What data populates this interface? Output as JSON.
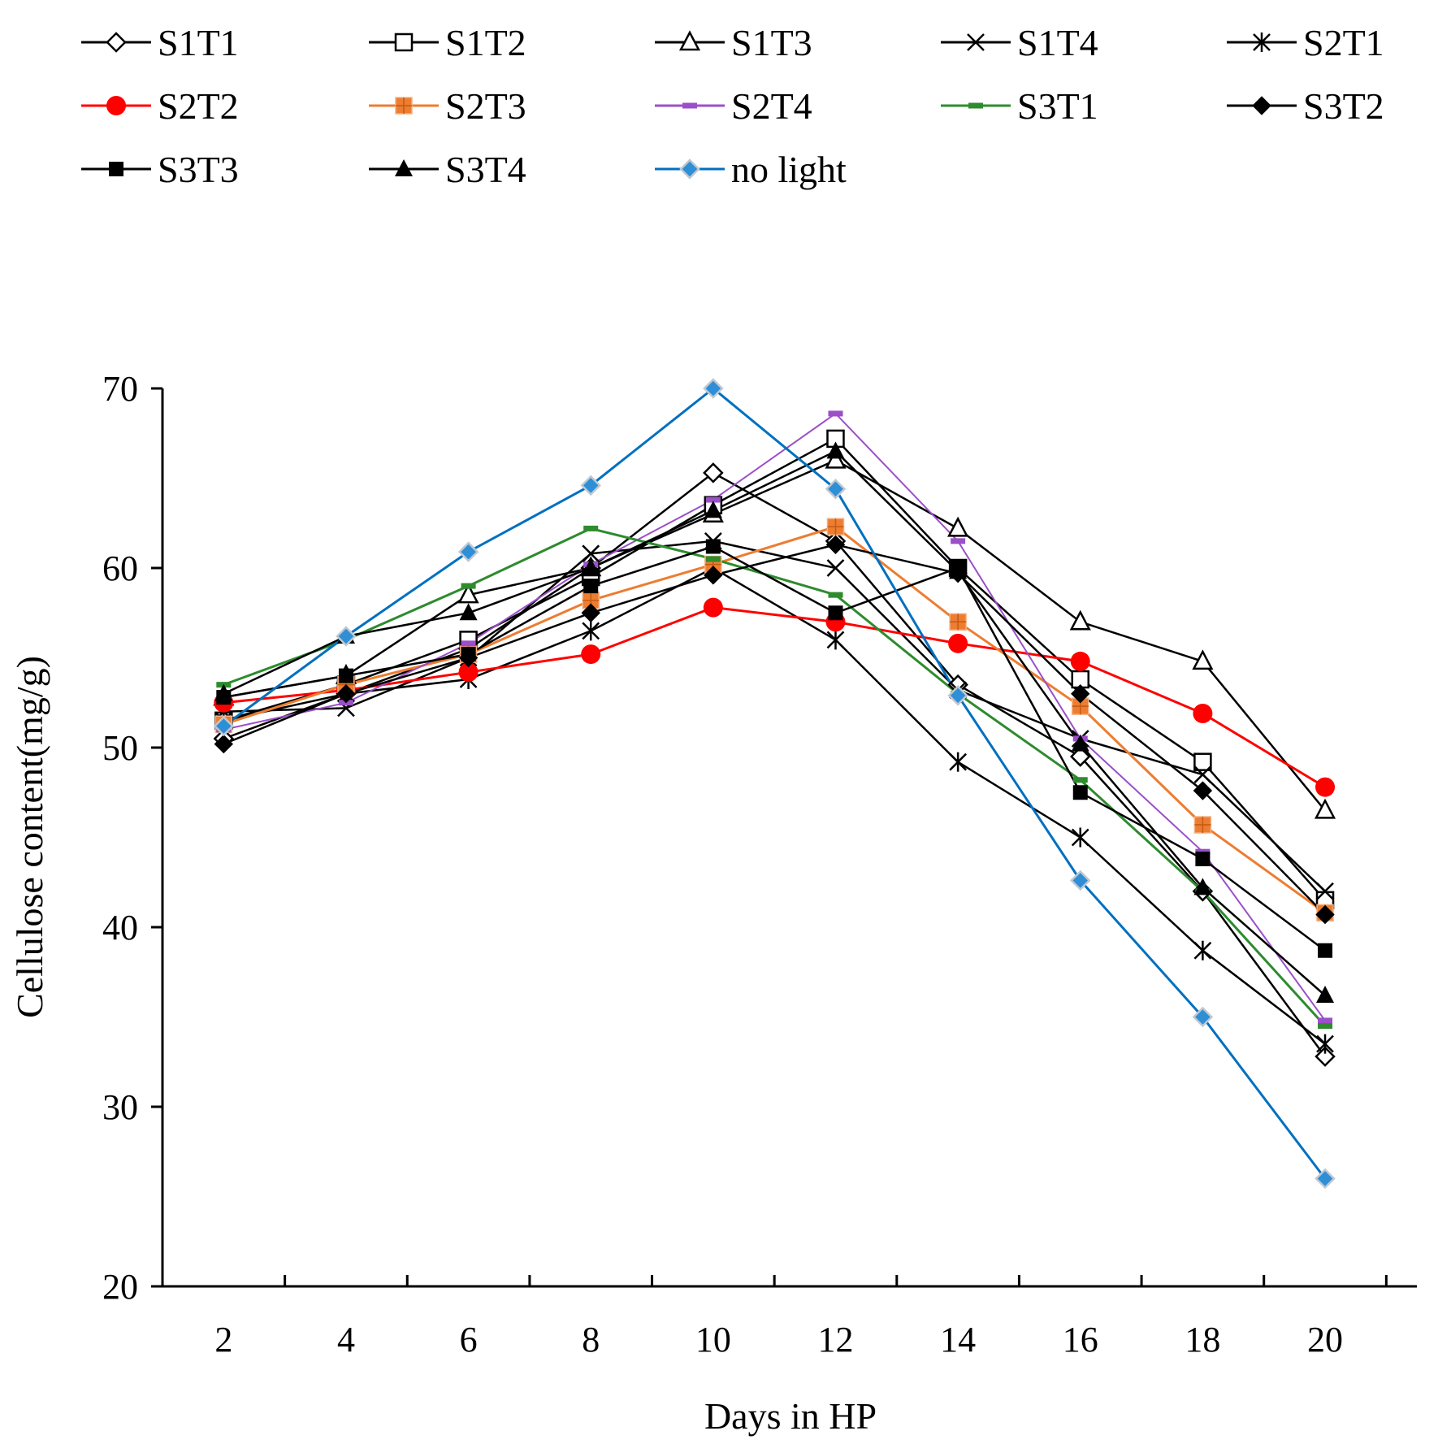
{
  "chart_data": {
    "type": "line",
    "xlabel": "Days in HP",
    "ylabel": "Cellulose content(mg/g)",
    "ylim": [
      20,
      70
    ],
    "yticks": [
      20,
      30,
      40,
      50,
      60,
      70
    ],
    "x": [
      2,
      4,
      6,
      8,
      10,
      12,
      14,
      16,
      18,
      20
    ],
    "grid": false,
    "legend_position": "top",
    "series": [
      {
        "name": "S1T1",
        "color": "#000000",
        "marker": "diamond-open",
        "values": [
          50.5,
          53.0,
          55.5,
          60.0,
          65.3,
          61.5,
          53.5,
          49.5,
          42.0,
          32.8
        ]
      },
      {
        "name": "S1T2",
        "color": "#000000",
        "marker": "square-open",
        "values": [
          51.5,
          53.5,
          56.0,
          59.5,
          63.5,
          67.2,
          60.0,
          53.8,
          49.2,
          41.5
        ]
      },
      {
        "name": "S1T3",
        "color": "#000000",
        "marker": "triangle-open",
        "values": [
          52.8,
          54.0,
          58.5,
          60.0,
          63.0,
          66.0,
          62.2,
          57.0,
          54.8,
          46.5
        ]
      },
      {
        "name": "S1T4",
        "color": "#000000",
        "marker": "x",
        "values": [
          52.0,
          52.2,
          55.0,
          60.8,
          61.5,
          60.0,
          53.2,
          50.5,
          48.5,
          42.0
        ]
      },
      {
        "name": "S2T1",
        "color": "#000000",
        "marker": "star",
        "values": [
          51.5,
          53.0,
          53.8,
          56.5,
          60.0,
          56.0,
          49.2,
          45.0,
          38.7,
          33.5
        ]
      },
      {
        "name": "S2T2",
        "color": "#ff0000",
        "marker": "circle",
        "values": [
          52.5,
          53.2,
          54.2,
          55.2,
          57.8,
          57.0,
          55.8,
          54.8,
          51.9,
          47.8
        ]
      },
      {
        "name": "S2T3",
        "color": "#ed7d31",
        "marker": "square-plus",
        "values": [
          51.3,
          53.5,
          55.2,
          58.2,
          60.2,
          62.3,
          57.0,
          52.3,
          45.7,
          40.8
        ]
      },
      {
        "name": "S2T4",
        "color": "#9b4fc8",
        "marker": "dash",
        "values": [
          51.0,
          52.5,
          55.8,
          60.2,
          63.8,
          68.6,
          61.5,
          50.5,
          44.2,
          34.8
        ]
      },
      {
        "name": "S3T1",
        "color": "#2e8b2e",
        "marker": "dash",
        "values": [
          53.5,
          56.0,
          59.0,
          62.2,
          60.5,
          58.5,
          53.0,
          48.2,
          42.0,
          34.5
        ]
      },
      {
        "name": "S3T2",
        "color": "#000000",
        "marker": "diamond",
        "values": [
          50.2,
          53.0,
          55.0,
          57.5,
          59.6,
          61.3,
          59.7,
          53.0,
          47.6,
          40.7
        ]
      },
      {
        "name": "S3T3",
        "color": "#000000",
        "marker": "square",
        "values": [
          52.8,
          54.0,
          55.2,
          59.0,
          61.2,
          57.5,
          60.0,
          47.5,
          43.8,
          38.7
        ]
      },
      {
        "name": "S3T4",
        "color": "#000000",
        "marker": "triangle",
        "values": [
          53.0,
          56.2,
          57.5,
          60.0,
          63.2,
          66.5,
          59.8,
          50.2,
          42.2,
          36.2
        ]
      },
      {
        "name": "no light",
        "color": "#0070c0",
        "marker": "diamond-blue",
        "values": [
          51.2,
          56.2,
          60.9,
          64.6,
          70.0,
          64.4,
          52.9,
          42.6,
          35.0,
          26.0
        ]
      }
    ]
  }
}
